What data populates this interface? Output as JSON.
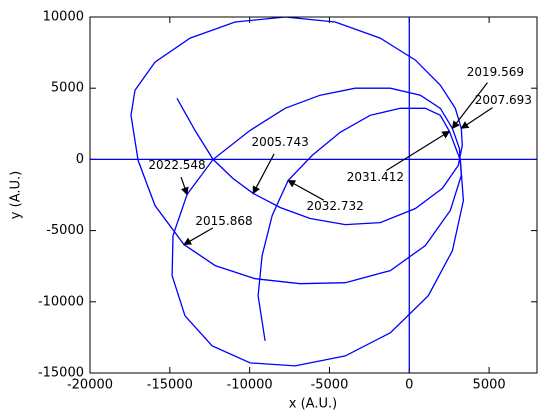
{
  "chart_data": {
    "type": "line",
    "xlabel": "x (A.U.)",
    "ylabel": "y (A.U.)",
    "xlim": [
      -20000,
      8000
    ],
    "ylim": [
      -15000,
      10000
    ],
    "xticks": [
      -20000,
      -15000,
      -10000,
      -5000,
      0,
      5000
    ],
    "yticks": [
      -15000,
      -10000,
      -5000,
      0,
      5000,
      10000
    ],
    "grid": false,
    "hlines": [
      0
    ],
    "vlines": [
      0
    ],
    "color": "#0000ff",
    "x": [
      -14550,
      -13420,
      -12290,
      -11040,
      -9780,
      -8090,
      -6210,
      -4010,
      -1820,
      380,
      2070,
      3070,
      3320,
      3260,
      2880,
      1940,
      380,
      -1820,
      -4640,
      -7780,
      -10910,
      -13730,
      -15930,
      -17180,
      -17430,
      -16990,
      -15930,
      -14110,
      -12160,
      -9660,
      -6830,
      -4010,
      -1190,
      1000,
      2570,
      3260,
      3140,
      2700,
      1940,
      690,
      -1190,
      -3390,
      -5580,
      -7780,
      -9970,
      -12290,
      -13920,
      -14800,
      -14860,
      -14050,
      -12350,
      -9970,
      -7150,
      -4010,
      -1190,
      1190,
      2700,
      3390,
      3200,
      2510,
      1940,
      1000,
      -560,
      -2450,
      -4330,
      -6080,
      -7590,
      -8590,
      -9220,
      -9470,
      -9030
    ],
    "values": [
      4290,
      2040,
      0,
      -1340,
      -2390,
      -3380,
      -4150,
      -4580,
      -4440,
      -3450,
      -2040,
      -420,
      990,
      2180,
      3590,
      5210,
      6970,
      8520,
      9650,
      10000,
      9650,
      8520,
      6830,
      4860,
      3100,
      -70,
      -3240,
      -5980,
      -7460,
      -8380,
      -8730,
      -8660,
      -7810,
      -6050,
      -3590,
      -1130,
      770,
      2180,
      3590,
      4510,
      5000,
      5000,
      4510,
      3590,
      2040,
      0,
      -2460,
      -5350,
      -8170,
      -10980,
      -13090,
      -14290,
      -14500,
      -13800,
      -12180,
      -9570,
      -6410,
      -2890,
      -70,
      1970,
      3100,
      3590,
      3590,
      3100,
      1900,
      280,
      -1480,
      -3940,
      -6760,
      -9570,
      -12740
    ],
    "annotations": [
      {
        "text": "2005.743",
        "x": -9780,
        "y": -2390
      },
      {
        "text": "2007.693",
        "x": 3260,
        "y": 2180
      },
      {
        "text": "2015.868",
        "x": -14110,
        "y": -5980
      },
      {
        "text": "2019.569",
        "x": 2700,
        "y": 2180
      },
      {
        "text": "2022.548",
        "x": -13920,
        "y": -2460
      },
      {
        "text": "2031.412",
        "x": 2510,
        "y": 1970
      },
      {
        "text": "2032.732",
        "x": -7590,
        "y": -1480
      }
    ]
  }
}
